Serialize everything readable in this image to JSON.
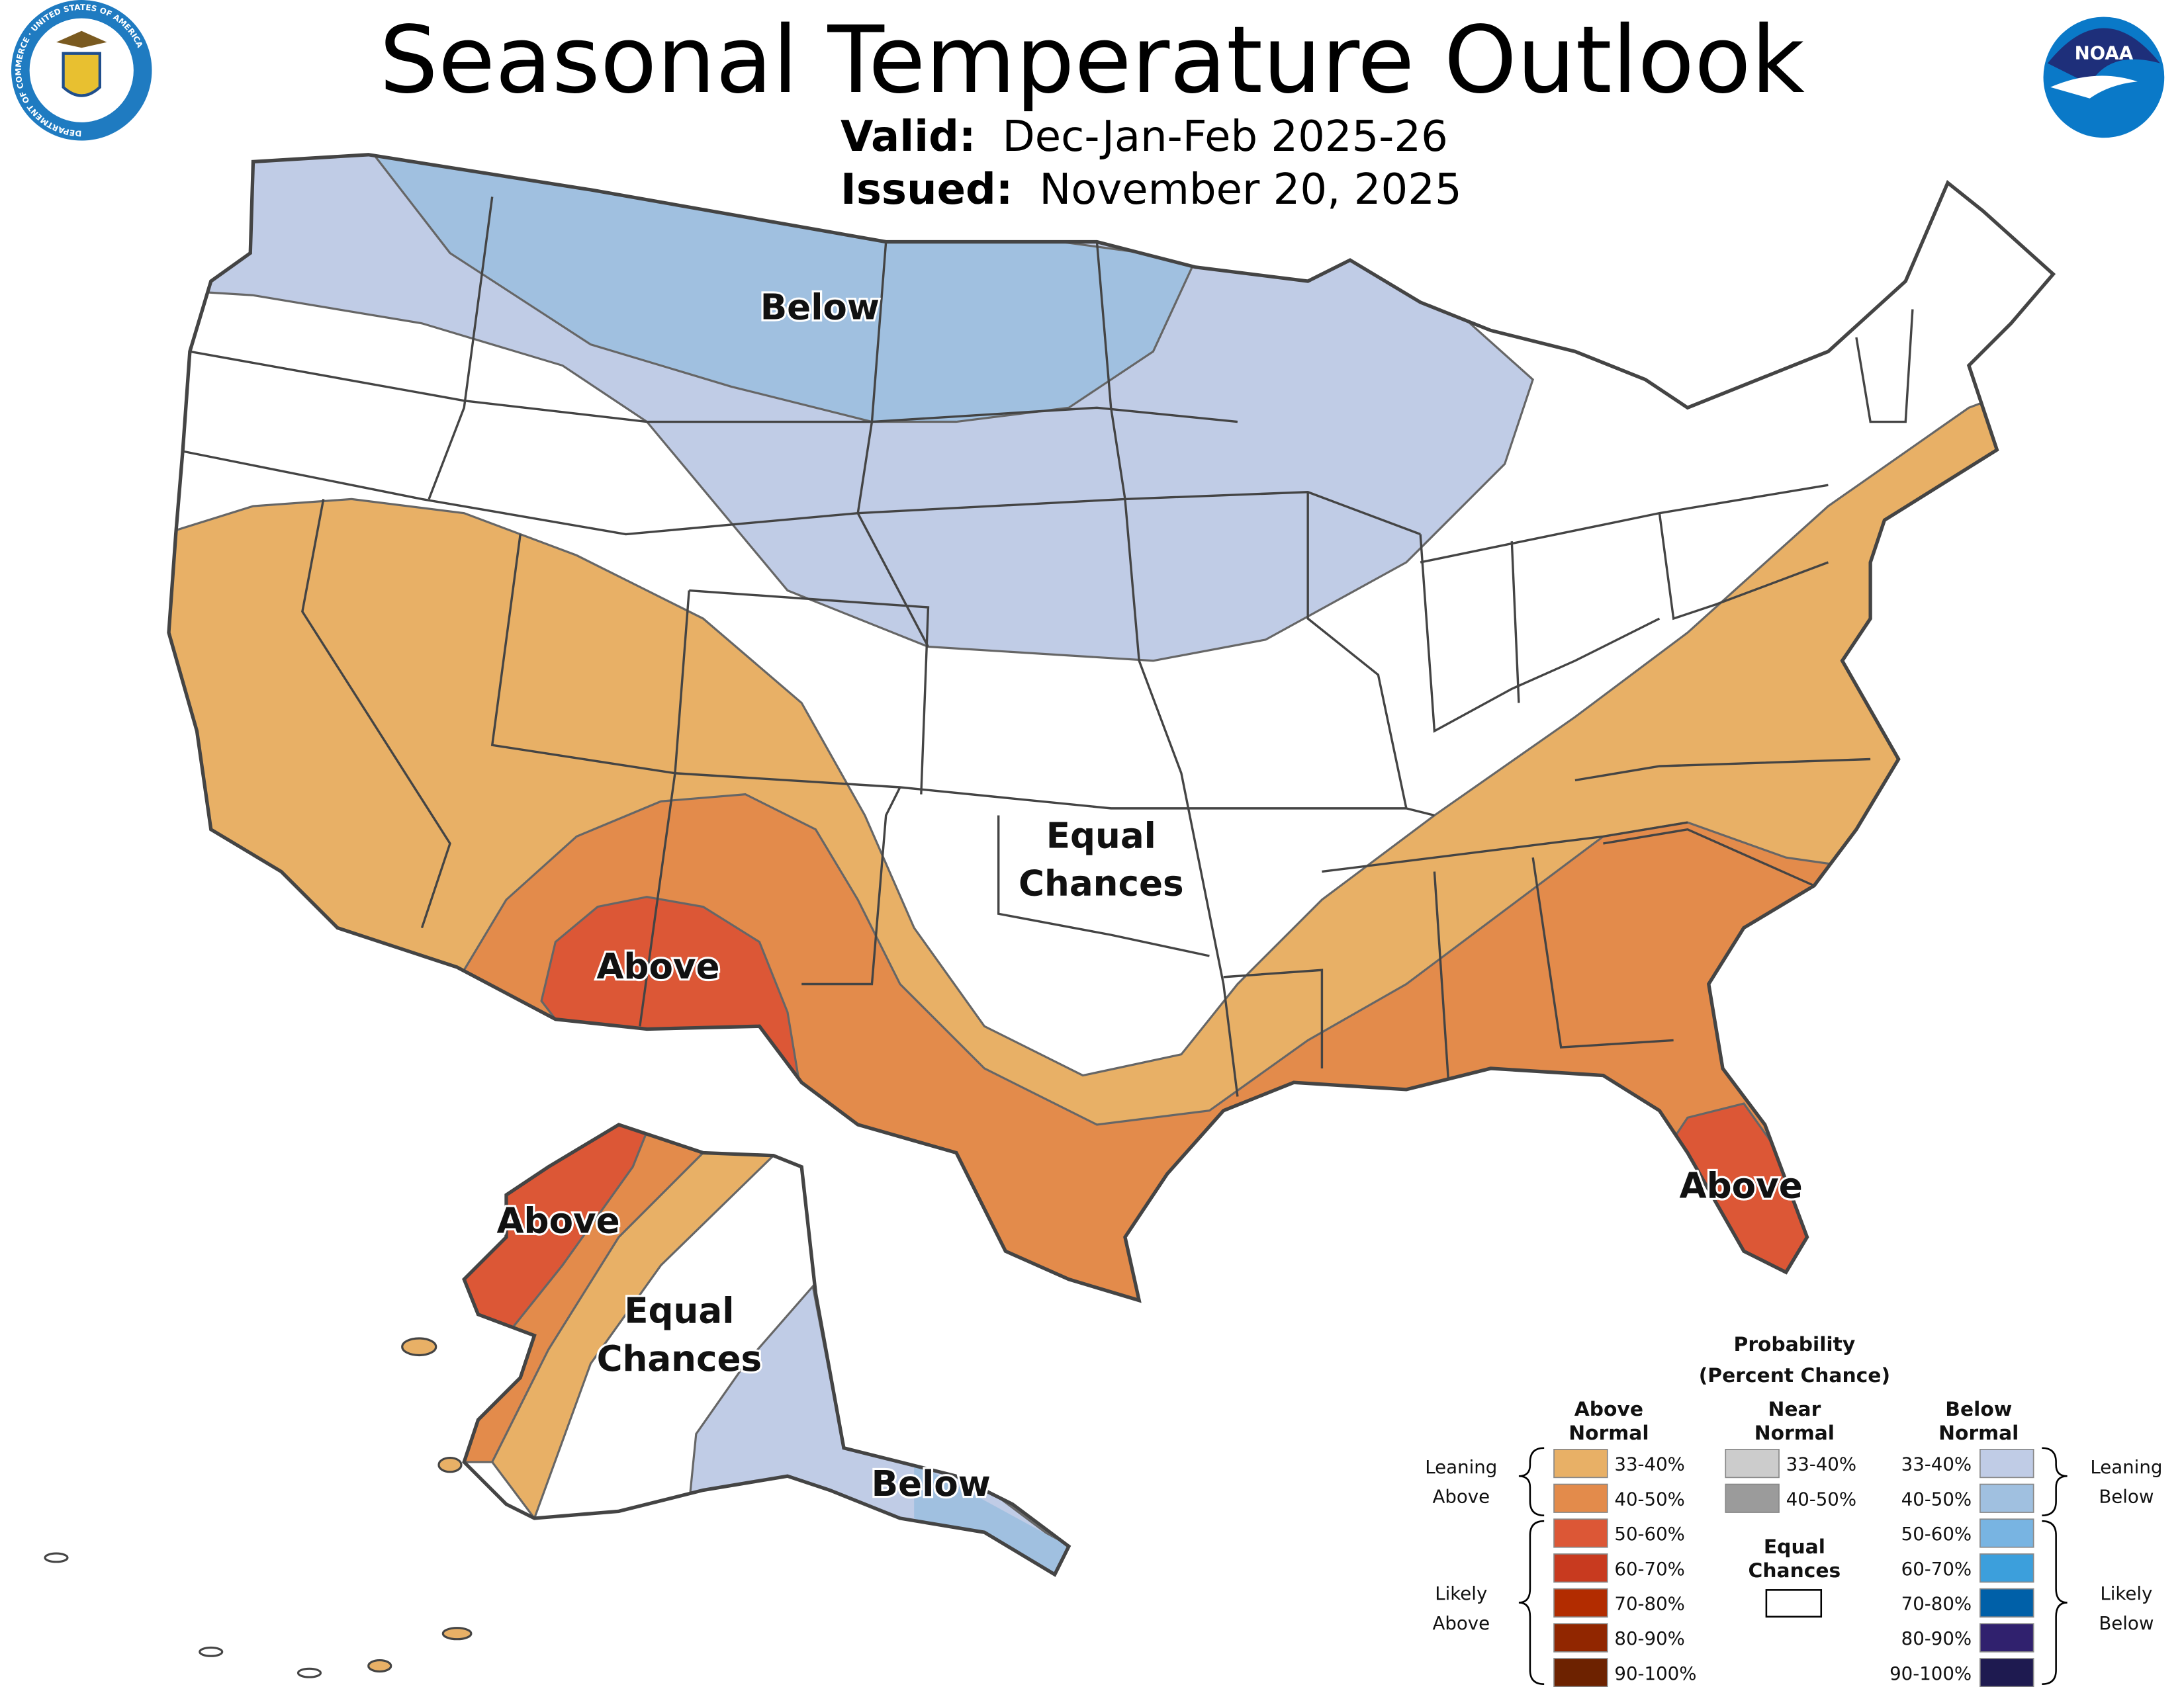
{
  "header": {
    "title": "Seasonal Temperature Outlook",
    "valid_label": "Valid:",
    "valid_value": "Dec-Jan-Feb 2025-26",
    "issued_label": "Issued:",
    "issued_value": "November 20, 2025",
    "left_logo": "Department of Commerce seal",
    "left_logo_text": "DEPARTMENT OF COMMERCE · UNITED STATES OF AMERICA",
    "right_logo": "NOAA logo",
    "right_logo_text": "NOAA"
  },
  "map_labels": {
    "conus_below": "Below",
    "conus_equal_1": "Equal",
    "conus_equal_2": "Chances",
    "conus_above_sw": "Above",
    "conus_above_fl": "Above",
    "ak_above": "Above",
    "ak_equal_1": "Equal",
    "ak_equal_2": "Chances",
    "ak_below": "Below"
  },
  "legend": {
    "title_1": "Probability",
    "title_2": "(Percent Chance)",
    "col_above_1": "Above",
    "col_above_2": "Normal",
    "col_near_1": "Near",
    "col_near_2": "Normal",
    "col_below_1": "Below",
    "col_below_2": "Normal",
    "leaning_above_1": "Leaning",
    "leaning_above_2": "Above",
    "likely_above_1": "Likely",
    "likely_above_2": "Above",
    "leaning_below_1": "Leaning",
    "leaning_below_2": "Below",
    "likely_below_1": "Likely",
    "likely_below_2": "Below",
    "equal_1": "Equal",
    "equal_2": "Chances",
    "above": [
      {
        "range": "33-40%",
        "color": "#e8b066"
      },
      {
        "range": "40-50%",
        "color": "#e38b4b"
      },
      {
        "range": "50-60%",
        "color": "#dc5736"
      },
      {
        "range": "60-70%",
        "color": "#c83a1f"
      },
      {
        "range": "70-80%",
        "color": "#b22c00"
      },
      {
        "range": "80-90%",
        "color": "#912600"
      },
      {
        "range": "90-100%",
        "color": "#6d2200"
      }
    ],
    "near": [
      {
        "range": "33-40%",
        "color": "#cccccc"
      },
      {
        "range": "40-50%",
        "color": "#9b9b9b"
      }
    ],
    "below": [
      {
        "range": "33-40%",
        "color": "#c0cce6"
      },
      {
        "range": "40-50%",
        "color": "#a0c0e0"
      },
      {
        "range": "50-60%",
        "color": "#78b4e2"
      },
      {
        "range": "60-70%",
        "color": "#3c9fdc"
      },
      {
        "range": "70-80%",
        "color": "#0060a8"
      },
      {
        "range": "80-90%",
        "color": "#30216e"
      },
      {
        "range": "90-100%",
        "color": "#1e1a50"
      }
    ],
    "equal_color": "#ffffff"
  }
}
